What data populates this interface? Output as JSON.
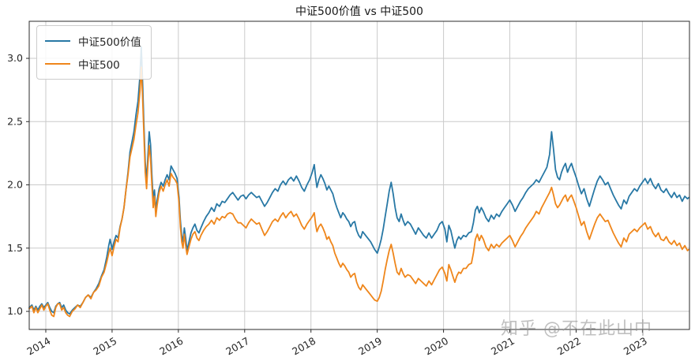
{
  "title": "中证500价值 vs 中证500",
  "watermark": "知乎 @不在此山中",
  "legend": [
    {
      "label": "中证500价值",
      "color": "#2878a5"
    },
    {
      "label": "中证500",
      "color": "#ef861b"
    }
  ],
  "colors": {
    "series_blue": "#2878a5",
    "series_orange": "#ef861b",
    "gridline": "#cacaca",
    "spine": "#2b2b2b",
    "tick_text": "#262626",
    "watermark_gray": "#8c8c8c",
    "background": "#ffffff"
  },
  "chart_data": {
    "type": "line",
    "title": "中证500价值 vs 中证500",
    "xlabel": "",
    "ylabel": "",
    "grid": true,
    "legend_position": "upper-left",
    "x_ticks": [
      "2014",
      "2015",
      "2016",
      "2017",
      "2018",
      "2019",
      "2020",
      "2021",
      "2022",
      "2023"
    ],
    "x_tick_values": [
      2014,
      2015,
      2016,
      2017,
      2018,
      2019,
      2020,
      2021,
      2022,
      2023
    ],
    "y_ticks": [
      "1.0",
      "1.5",
      "2.0",
      "2.5",
      "3.0"
    ],
    "y_tick_values": [
      1.0,
      1.5,
      2.0,
      2.5,
      3.0
    ],
    "xlim": [
      2013.75,
      2023.71
    ],
    "ylim": [
      0.857,
      3.293
    ],
    "series": [
      {
        "name": "中证500价值",
        "color": "#2878a5",
        "value_index": 1
      },
      {
        "name": "中证500",
        "color": "#ef861b",
        "value_index": 2
      }
    ],
    "points": [
      [
        2013.75,
        1.03,
        1.02
      ],
      [
        2013.79,
        1.05,
        1.04
      ],
      [
        2013.82,
        1.01,
        0.99
      ],
      [
        2013.85,
        1.04,
        1.03
      ],
      [
        2013.88,
        1.01,
        0.99
      ],
      [
        2013.91,
        1.04,
        1.02
      ],
      [
        2013.94,
        1.06,
        1.05
      ],
      [
        2013.97,
        1.03,
        1.01
      ],
      [
        2014.0,
        1.05,
        1.04
      ],
      [
        2014.03,
        1.07,
        1.06
      ],
      [
        2014.06,
        1.03,
        1.01
      ],
      [
        2014.09,
        1.0,
        0.97
      ],
      [
        2014.12,
        0.99,
        0.96
      ],
      [
        2014.15,
        1.04,
        1.03
      ],
      [
        2014.18,
        1.06,
        1.06
      ],
      [
        2014.21,
        1.07,
        1.06
      ],
      [
        2014.24,
        1.03,
        1.01
      ],
      [
        2014.27,
        1.05,
        1.03
      ],
      [
        2014.3,
        1.01,
        0.99
      ],
      [
        2014.33,
        0.99,
        0.97
      ],
      [
        2014.36,
        0.98,
        0.96
      ],
      [
        2014.4,
        1.01,
        1.0
      ],
      [
        2014.44,
        1.03,
        1.02
      ],
      [
        2014.48,
        1.05,
        1.05
      ],
      [
        2014.52,
        1.04,
        1.03
      ],
      [
        2014.56,
        1.07,
        1.07
      ],
      [
        2014.6,
        1.11,
        1.11
      ],
      [
        2014.64,
        1.13,
        1.13
      ],
      [
        2014.68,
        1.11,
        1.1
      ],
      [
        2014.72,
        1.15,
        1.15
      ],
      [
        2014.76,
        1.18,
        1.17
      ],
      [
        2014.8,
        1.22,
        1.2
      ],
      [
        2014.84,
        1.28,
        1.27
      ],
      [
        2014.88,
        1.33,
        1.31
      ],
      [
        2014.92,
        1.43,
        1.39
      ],
      [
        2014.95,
        1.52,
        1.46
      ],
      [
        2014.97,
        1.57,
        1.5
      ],
      [
        2015.0,
        1.49,
        1.44
      ],
      [
        2015.03,
        1.55,
        1.51
      ],
      [
        2015.06,
        1.6,
        1.57
      ],
      [
        2015.09,
        1.58,
        1.55
      ],
      [
        2015.12,
        1.67,
        1.66
      ],
      [
        2015.15,
        1.73,
        1.73
      ],
      [
        2015.18,
        1.82,
        1.82
      ],
      [
        2015.21,
        1.96,
        1.96
      ],
      [
        2015.24,
        2.1,
        2.08
      ],
      [
        2015.27,
        2.26,
        2.22
      ],
      [
        2015.3,
        2.34,
        2.29
      ],
      [
        2015.33,
        2.42,
        2.36
      ],
      [
        2015.36,
        2.55,
        2.47
      ],
      [
        2015.39,
        2.66,
        2.57
      ],
      [
        2015.42,
        2.86,
        2.74
      ],
      [
        2015.44,
        3.09,
        2.93
      ],
      [
        2015.46,
        2.82,
        2.7
      ],
      [
        2015.48,
        2.48,
        2.4
      ],
      [
        2015.5,
        2.18,
        2.1
      ],
      [
        2015.52,
        2.03,
        1.97
      ],
      [
        2015.54,
        2.22,
        2.15
      ],
      [
        2015.56,
        2.42,
        2.31
      ],
      [
        2015.58,
        2.32,
        2.21
      ],
      [
        2015.6,
        2.08,
        2.0
      ],
      [
        2015.62,
        1.88,
        1.82
      ],
      [
        2015.64,
        1.96,
        1.91
      ],
      [
        2015.66,
        1.8,
        1.75
      ],
      [
        2015.68,
        1.88,
        1.84
      ],
      [
        2015.71,
        1.97,
        1.94
      ],
      [
        2015.74,
        2.02,
        1.99
      ],
      [
        2015.77,
        1.99,
        1.95
      ],
      [
        2015.8,
        2.04,
        2.0
      ],
      [
        2015.83,
        2.08,
        2.04
      ],
      [
        2015.86,
        2.04,
        1.99
      ],
      [
        2015.89,
        2.15,
        2.09
      ],
      [
        2015.92,
        2.12,
        2.06
      ],
      [
        2015.95,
        2.09,
        2.04
      ],
      [
        2015.98,
        2.05,
        2.01
      ],
      [
        2016.01,
        1.9,
        1.86
      ],
      [
        2016.03,
        1.72,
        1.67
      ],
      [
        2016.05,
        1.6,
        1.55
      ],
      [
        2016.07,
        1.55,
        1.5
      ],
      [
        2016.09,
        1.66,
        1.61
      ],
      [
        2016.11,
        1.58,
        1.52
      ],
      [
        2016.13,
        1.48,
        1.45
      ],
      [
        2016.16,
        1.55,
        1.51
      ],
      [
        2016.19,
        1.62,
        1.57
      ],
      [
        2016.22,
        1.66,
        1.61
      ],
      [
        2016.25,
        1.69,
        1.63
      ],
      [
        2016.28,
        1.64,
        1.58
      ],
      [
        2016.31,
        1.62,
        1.56
      ],
      [
        2016.34,
        1.66,
        1.6
      ],
      [
        2016.38,
        1.71,
        1.64
      ],
      [
        2016.42,
        1.75,
        1.67
      ],
      [
        2016.46,
        1.78,
        1.69
      ],
      [
        2016.5,
        1.82,
        1.72
      ],
      [
        2016.54,
        1.79,
        1.69
      ],
      [
        2016.58,
        1.85,
        1.74
      ],
      [
        2016.62,
        1.83,
        1.72
      ],
      [
        2016.66,
        1.87,
        1.75
      ],
      [
        2016.7,
        1.86,
        1.74
      ],
      [
        2016.74,
        1.89,
        1.77
      ],
      [
        2016.78,
        1.92,
        1.78
      ],
      [
        2016.82,
        1.94,
        1.77
      ],
      [
        2016.86,
        1.91,
        1.73
      ],
      [
        2016.9,
        1.88,
        1.7
      ],
      [
        2016.94,
        1.91,
        1.7
      ],
      [
        2016.98,
        1.92,
        1.68
      ],
      [
        2017.02,
        1.89,
        1.66
      ],
      [
        2017.06,
        1.92,
        1.7
      ],
      [
        2017.1,
        1.94,
        1.73
      ],
      [
        2017.14,
        1.92,
        1.71
      ],
      [
        2017.18,
        1.9,
        1.69
      ],
      [
        2017.22,
        1.91,
        1.7
      ],
      [
        2017.26,
        1.87,
        1.65
      ],
      [
        2017.3,
        1.83,
        1.6
      ],
      [
        2017.34,
        1.86,
        1.63
      ],
      [
        2017.38,
        1.9,
        1.67
      ],
      [
        2017.42,
        1.94,
        1.71
      ],
      [
        2017.46,
        1.97,
        1.73
      ],
      [
        2017.5,
        1.95,
        1.71
      ],
      [
        2017.54,
        2.0,
        1.75
      ],
      [
        2017.58,
        2.03,
        1.78
      ],
      [
        2017.62,
        2.0,
        1.74
      ],
      [
        2017.66,
        2.04,
        1.77
      ],
      [
        2017.7,
        2.06,
        1.79
      ],
      [
        2017.74,
        2.03,
        1.75
      ],
      [
        2017.78,
        2.07,
        1.77
      ],
      [
        2017.82,
        2.03,
        1.73
      ],
      [
        2017.86,
        1.98,
        1.68
      ],
      [
        2017.9,
        1.95,
        1.65
      ],
      [
        2017.94,
        2.0,
        1.69
      ],
      [
        2017.98,
        2.04,
        1.72
      ],
      [
        2018.02,
        2.1,
        1.75
      ],
      [
        2018.05,
        2.16,
        1.78
      ],
      [
        2018.07,
        2.06,
        1.69
      ],
      [
        2018.09,
        1.98,
        1.63
      ],
      [
        2018.12,
        2.04,
        1.67
      ],
      [
        2018.15,
        2.08,
        1.69
      ],
      [
        2018.18,
        2.05,
        1.66
      ],
      [
        2018.21,
        2.01,
        1.62
      ],
      [
        2018.24,
        1.96,
        1.57
      ],
      [
        2018.27,
        1.99,
        1.59
      ],
      [
        2018.3,
        1.96,
        1.55
      ],
      [
        2018.33,
        1.93,
        1.52
      ],
      [
        2018.36,
        1.87,
        1.46
      ],
      [
        2018.39,
        1.82,
        1.42
      ],
      [
        2018.42,
        1.78,
        1.38
      ],
      [
        2018.45,
        1.74,
        1.35
      ],
      [
        2018.48,
        1.78,
        1.38
      ],
      [
        2018.51,
        1.76,
        1.36
      ],
      [
        2018.54,
        1.73,
        1.33
      ],
      [
        2018.57,
        1.71,
        1.31
      ],
      [
        2018.6,
        1.67,
        1.27
      ],
      [
        2018.63,
        1.7,
        1.29
      ],
      [
        2018.66,
        1.71,
        1.3
      ],
      [
        2018.69,
        1.64,
        1.23
      ],
      [
        2018.72,
        1.6,
        1.19
      ],
      [
        2018.75,
        1.58,
        1.17
      ],
      [
        2018.78,
        1.63,
        1.21
      ],
      [
        2018.81,
        1.61,
        1.19
      ],
      [
        2018.84,
        1.59,
        1.17
      ],
      [
        2018.87,
        1.57,
        1.15
      ],
      [
        2018.9,
        1.55,
        1.13
      ],
      [
        2018.93,
        1.52,
        1.11
      ],
      [
        2018.96,
        1.49,
        1.09
      ],
      [
        2019.0,
        1.46,
        1.08
      ],
      [
        2019.03,
        1.51,
        1.11
      ],
      [
        2019.06,
        1.57,
        1.16
      ],
      [
        2019.09,
        1.65,
        1.24
      ],
      [
        2019.12,
        1.75,
        1.33
      ],
      [
        2019.15,
        1.85,
        1.41
      ],
      [
        2019.18,
        1.95,
        1.48
      ],
      [
        2019.21,
        2.02,
        1.53
      ],
      [
        2019.24,
        1.93,
        1.46
      ],
      [
        2019.27,
        1.82,
        1.38
      ],
      [
        2019.3,
        1.74,
        1.31
      ],
      [
        2019.33,
        1.71,
        1.29
      ],
      [
        2019.36,
        1.77,
        1.34
      ],
      [
        2019.39,
        1.72,
        1.3
      ],
      [
        2019.42,
        1.68,
        1.27
      ],
      [
        2019.46,
        1.71,
        1.29
      ],
      [
        2019.5,
        1.69,
        1.28
      ],
      [
        2019.54,
        1.65,
        1.25
      ],
      [
        2019.58,
        1.61,
        1.22
      ],
      [
        2019.62,
        1.66,
        1.26
      ],
      [
        2019.66,
        1.63,
        1.24
      ],
      [
        2019.7,
        1.6,
        1.22
      ],
      [
        2019.74,
        1.58,
        1.2
      ],
      [
        2019.78,
        1.62,
        1.24
      ],
      [
        2019.82,
        1.58,
        1.21
      ],
      [
        2019.86,
        1.61,
        1.25
      ],
      [
        2019.9,
        1.64,
        1.29
      ],
      [
        2019.94,
        1.69,
        1.33
      ],
      [
        2019.98,
        1.71,
        1.35
      ],
      [
        2020.02,
        1.65,
        1.3
      ],
      [
        2020.05,
        1.55,
        1.24
      ],
      [
        2020.08,
        1.68,
        1.37
      ],
      [
        2020.11,
        1.64,
        1.33
      ],
      [
        2020.14,
        1.57,
        1.28
      ],
      [
        2020.17,
        1.5,
        1.23
      ],
      [
        2020.2,
        1.56,
        1.28
      ],
      [
        2020.23,
        1.59,
        1.31
      ],
      [
        2020.26,
        1.57,
        1.3
      ],
      [
        2020.3,
        1.6,
        1.34
      ],
      [
        2020.34,
        1.59,
        1.34
      ],
      [
        2020.38,
        1.62,
        1.37
      ],
      [
        2020.42,
        1.63,
        1.38
      ],
      [
        2020.45,
        1.7,
        1.46
      ],
      [
        2020.48,
        1.8,
        1.57
      ],
      [
        2020.51,
        1.83,
        1.61
      ],
      [
        2020.54,
        1.78,
        1.56
      ],
      [
        2020.57,
        1.82,
        1.6
      ],
      [
        2020.6,
        1.79,
        1.57
      ],
      [
        2020.64,
        1.74,
        1.51
      ],
      [
        2020.68,
        1.71,
        1.48
      ],
      [
        2020.72,
        1.76,
        1.53
      ],
      [
        2020.76,
        1.73,
        1.5
      ],
      [
        2020.8,
        1.77,
        1.53
      ],
      [
        2020.84,
        1.75,
        1.51
      ],
      [
        2020.88,
        1.79,
        1.54
      ],
      [
        2020.92,
        1.82,
        1.56
      ],
      [
        2020.96,
        1.85,
        1.58
      ],
      [
        2021.0,
        1.88,
        1.6
      ],
      [
        2021.04,
        1.84,
        1.56
      ],
      [
        2021.08,
        1.79,
        1.51
      ],
      [
        2021.12,
        1.83,
        1.55
      ],
      [
        2021.16,
        1.87,
        1.59
      ],
      [
        2021.2,
        1.9,
        1.62
      ],
      [
        2021.24,
        1.94,
        1.66
      ],
      [
        2021.28,
        1.97,
        1.69
      ],
      [
        2021.32,
        1.99,
        1.72
      ],
      [
        2021.36,
        2.01,
        1.75
      ],
      [
        2021.4,
        2.04,
        1.79
      ],
      [
        2021.44,
        2.02,
        1.77
      ],
      [
        2021.48,
        2.06,
        1.82
      ],
      [
        2021.52,
        2.1,
        1.86
      ],
      [
        2021.56,
        2.14,
        1.9
      ],
      [
        2021.6,
        2.24,
        1.94
      ],
      [
        2021.63,
        2.42,
        1.98
      ],
      [
        2021.66,
        2.28,
        1.92
      ],
      [
        2021.69,
        2.12,
        1.85
      ],
      [
        2021.72,
        2.06,
        1.82
      ],
      [
        2021.75,
        2.04,
        1.84
      ],
      [
        2021.78,
        2.1,
        1.87
      ],
      [
        2021.81,
        2.14,
        1.9
      ],
      [
        2021.84,
        2.17,
        1.92
      ],
      [
        2021.87,
        2.1,
        1.87
      ],
      [
        2021.9,
        2.14,
        1.9
      ],
      [
        2021.93,
        2.17,
        1.92
      ],
      [
        2021.96,
        2.12,
        1.88
      ],
      [
        2022.0,
        2.06,
        1.82
      ],
      [
        2022.04,
        1.99,
        1.75
      ],
      [
        2022.08,
        1.93,
        1.68
      ],
      [
        2022.12,
        1.97,
        1.71
      ],
      [
        2022.16,
        1.89,
        1.63
      ],
      [
        2022.2,
        1.83,
        1.57
      ],
      [
        2022.24,
        1.9,
        1.63
      ],
      [
        2022.28,
        1.97,
        1.69
      ],
      [
        2022.32,
        2.03,
        1.74
      ],
      [
        2022.36,
        2.07,
        1.77
      ],
      [
        2022.4,
        2.04,
        1.74
      ],
      [
        2022.44,
        2.0,
        1.71
      ],
      [
        2022.48,
        2.02,
        1.72
      ],
      [
        2022.52,
        1.97,
        1.67
      ],
      [
        2022.56,
        1.92,
        1.62
      ],
      [
        2022.6,
        1.88,
        1.58
      ],
      [
        2022.64,
        1.84,
        1.54
      ],
      [
        2022.68,
        1.81,
        1.51
      ],
      [
        2022.72,
        1.88,
        1.58
      ],
      [
        2022.76,
        1.85,
        1.55
      ],
      [
        2022.8,
        1.91,
        1.61
      ],
      [
        2022.84,
        1.94,
        1.63
      ],
      [
        2022.88,
        1.97,
        1.65
      ],
      [
        2022.92,
        1.95,
        1.63
      ],
      [
        2022.96,
        1.99,
        1.66
      ],
      [
        2023.0,
        2.02,
        1.68
      ],
      [
        2023.04,
        2.05,
        1.7
      ],
      [
        2023.08,
        2.01,
        1.65
      ],
      [
        2023.12,
        2.05,
        1.67
      ],
      [
        2023.16,
        2.0,
        1.62
      ],
      [
        2023.2,
        1.97,
        1.59
      ],
      [
        2023.24,
        2.01,
        1.62
      ],
      [
        2023.28,
        1.96,
        1.57
      ],
      [
        2023.32,
        1.94,
        1.56
      ],
      [
        2023.36,
        1.97,
        1.59
      ],
      [
        2023.4,
        1.93,
        1.55
      ],
      [
        2023.44,
        1.9,
        1.53
      ],
      [
        2023.48,
        1.94,
        1.56
      ],
      [
        2023.52,
        1.9,
        1.52
      ],
      [
        2023.56,
        1.92,
        1.54
      ],
      [
        2023.6,
        1.87,
        1.49
      ],
      [
        2023.64,
        1.91,
        1.52
      ],
      [
        2023.68,
        1.89,
        1.48
      ],
      [
        2023.7,
        1.9,
        1.49
      ]
    ]
  }
}
